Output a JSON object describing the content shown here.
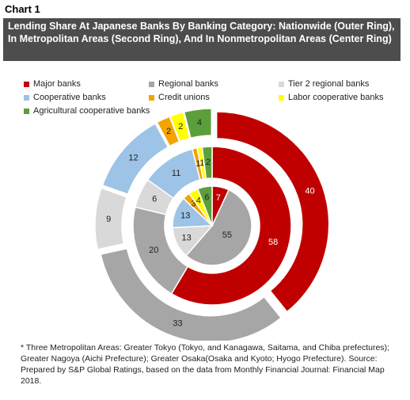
{
  "chart_data": {
    "type": "donut",
    "label": "Chart 1",
    "title": "Lending Share At Japanese Banks By Banking Category: Nationwide (Outer Ring), In Metropolitan Areas (Second Ring), And In Nonmetropolitan Areas (Center Ring)",
    "categories": [
      "Major banks",
      "Regional banks",
      "Tier 2 regional banks",
      "Cooperative banks",
      "Credit unions",
      "Labor cooperative banks",
      "Agricultural cooperative banks"
    ],
    "colors": [
      "#c00000",
      "#a6a6a6",
      "#d9d9d9",
      "#9dc3e6",
      "#f4a300",
      "#ffff00",
      "#5b9f3c"
    ],
    "series": [
      {
        "values": [
          40,
          33,
          9,
          12,
          2,
          2,
          4
        ]
      },
      {
        "values": [
          58,
          20,
          6,
          11,
          1,
          1,
          2
        ]
      },
      {
        "values": [
          7,
          55,
          13,
          13,
          3,
          4,
          6
        ]
      }
    ],
    "note": "* Three Metropolitan Areas: Greater Tokyo (Tokyo, and Kanagawa, Saitama, and Chiba prefectures); Greater Nagoya (Aichi Prefecture); Greater Osaka(Osaka and Kyoto; Hyogo Prefecture). Source: Prepared by S&P Global Ratings, based on the data from Monthly Financial Journal: Financial Map 2018."
  }
}
